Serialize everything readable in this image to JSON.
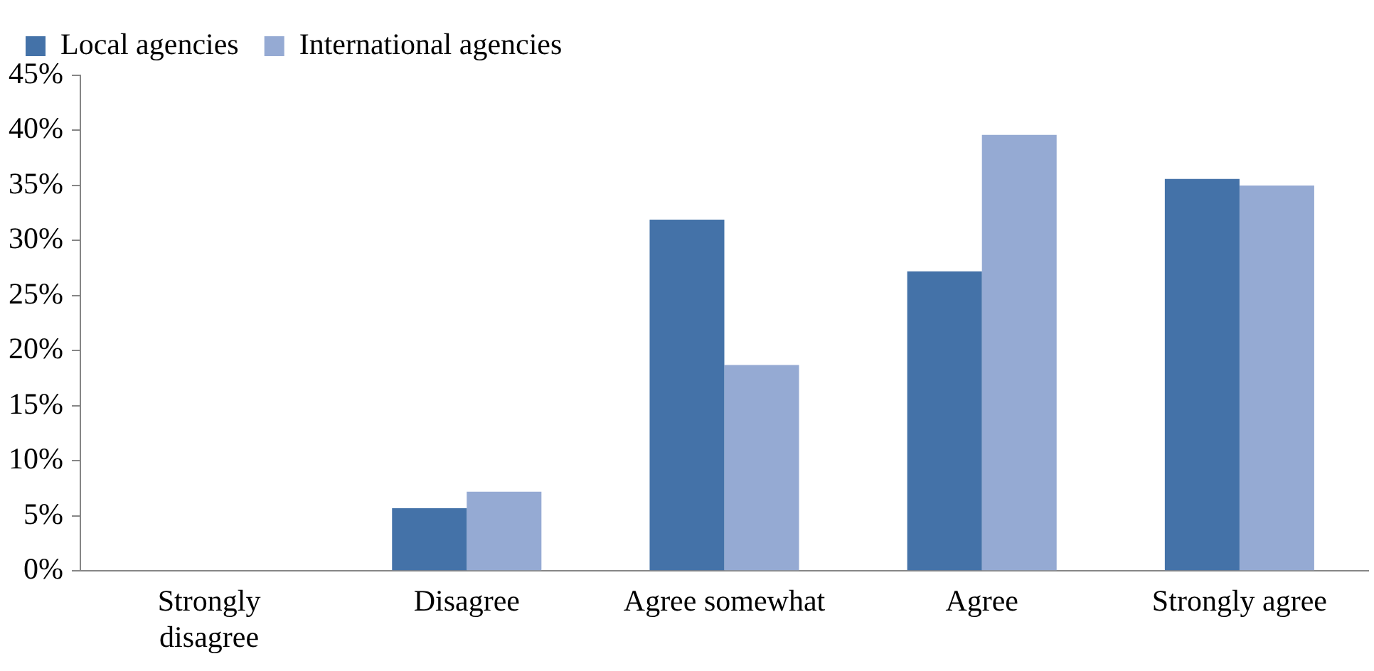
{
  "chart_data": {
    "type": "bar",
    "categories": [
      "Strongly disagree",
      "Disagree",
      "Agree somewhat",
      "Agree",
      "Strongly agree"
    ],
    "series": [
      {
        "name": "Local agencies",
        "color": "#4472a8",
        "values": [
          0,
          5.7,
          31.9,
          27.2,
          35.6
        ]
      },
      {
        "name": "International agencies",
        "color": "#95aad3",
        "values": [
          0,
          7.2,
          18.7,
          39.6,
          35.0
        ]
      }
    ],
    "ylim": [
      0,
      45
    ],
    "yticks": [
      {
        "value": 0,
        "label": "0%"
      },
      {
        "value": 5,
        "label": "5%"
      },
      {
        "value": 10,
        "label": "10%"
      },
      {
        "value": 15,
        "label": "15%"
      },
      {
        "value": 20,
        "label": "20%"
      },
      {
        "value": 25,
        "label": "25%"
      },
      {
        "value": 30,
        "label": "30%"
      },
      {
        "value": 35,
        "label": "35%"
      },
      {
        "value": 40,
        "label": "40%"
      },
      {
        "value": 45,
        "label": "45%"
      }
    ],
    "grid": false,
    "legend": "top left"
  }
}
